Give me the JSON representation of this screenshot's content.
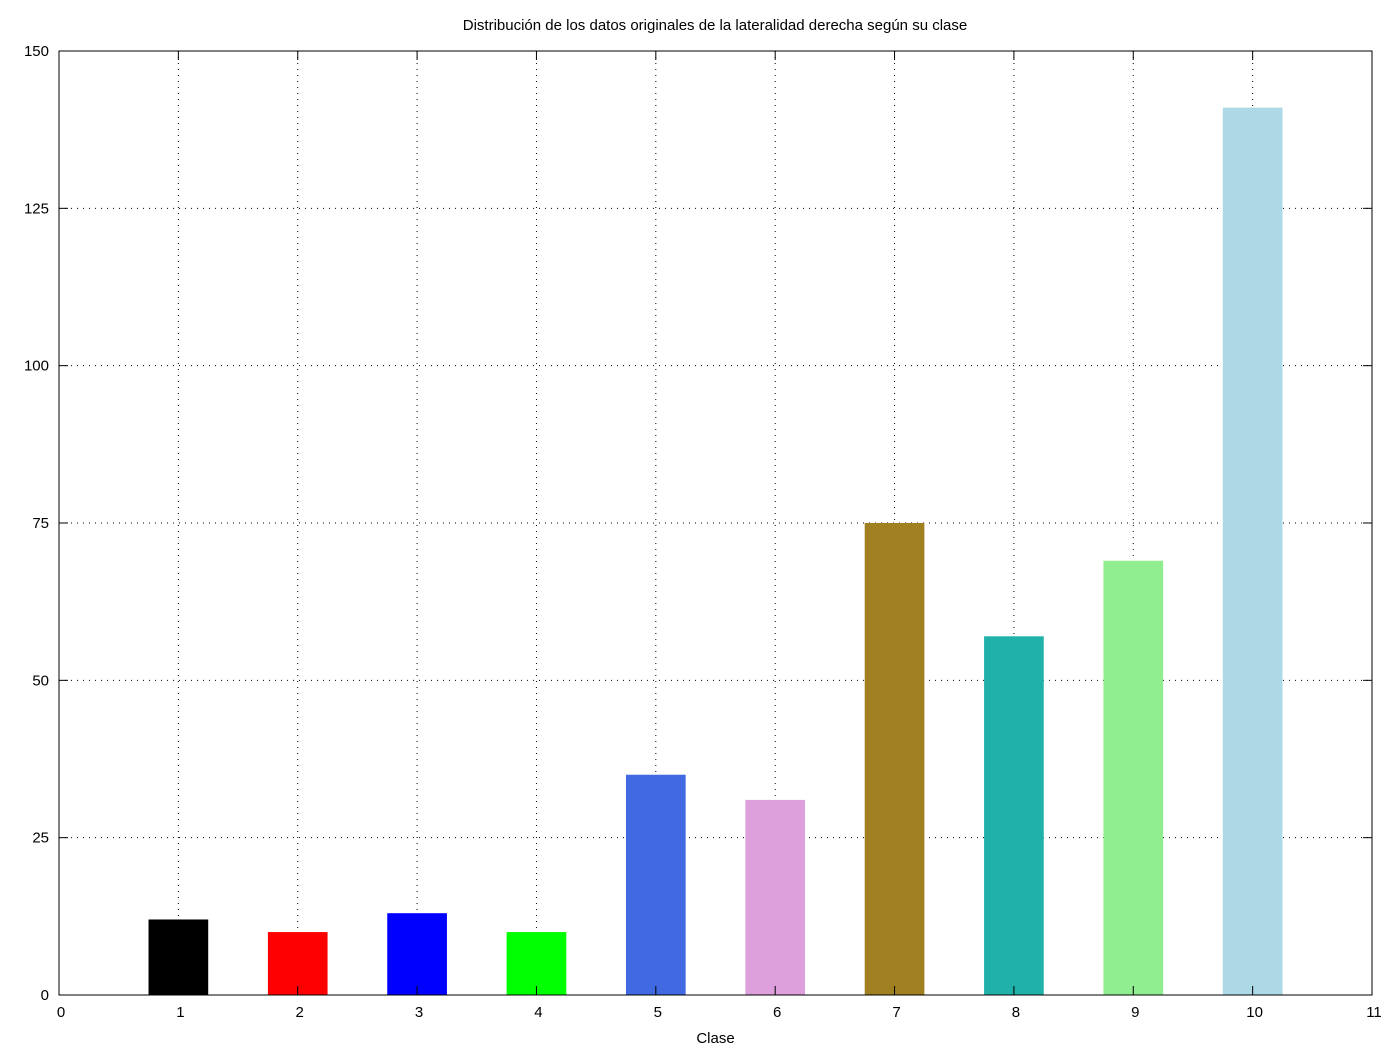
{
  "chart_data": {
    "type": "bar",
    "title": "Distribución de los datos originales de la lateralidad derecha según su clase",
    "xlabel": "Clase",
    "ylabel": "",
    "x": [
      1,
      2,
      3,
      4,
      5,
      6,
      7,
      8,
      9,
      10
    ],
    "values": [
      12,
      10,
      13,
      10,
      35,
      31,
      75,
      57,
      69,
      141
    ],
    "colors": [
      "#000000",
      "#ff0000",
      "#0000ff",
      "#00ff00",
      "#4169e1",
      "#dda0dd",
      "#a08020",
      "#20b2aa",
      "#90ee90",
      "#add8e6"
    ],
    "xlim": [
      0,
      11
    ],
    "ylim": [
      0,
      150
    ],
    "x_ticks": [
      "0",
      "1",
      "2",
      "3",
      "4",
      "5",
      "6",
      "7",
      "8",
      "9",
      "10",
      "11"
    ],
    "y_ticks": [
      "0",
      "25",
      "50",
      "75",
      "100",
      "125",
      "150"
    ],
    "grid": true,
    "bar_width": 0.5
  }
}
